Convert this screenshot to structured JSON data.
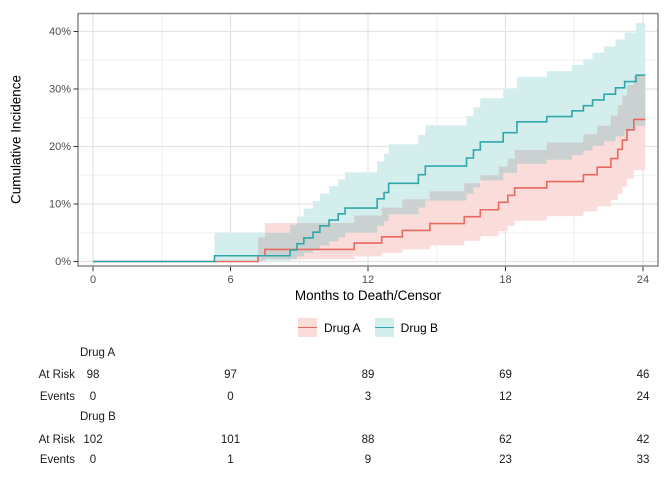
{
  "chart_data": {
    "type": "line",
    "subtype": "step-cumulative-incidence-with-confidence-bands",
    "title": "",
    "xlabel": "Months to Death/Censor",
    "ylabel": "Cumulative Incidence",
    "xlim": [
      0,
      24
    ],
    "ylim_pct": [
      0,
      42
    ],
    "x_ticks": [
      0,
      6,
      12,
      18,
      24
    ],
    "x_tick_labels": [
      "0",
      "6",
      "12",
      "18",
      "24"
    ],
    "x_minor_ticks": [
      3,
      9,
      15,
      21
    ],
    "y_ticks_pct": [
      0,
      10,
      20,
      30,
      40
    ],
    "y_tick_labels": [
      "0%",
      "10%",
      "20%",
      "30%",
      "40%"
    ],
    "y_minor_ticks_pct": [
      5,
      15,
      25,
      35
    ],
    "grid": true,
    "legend_position": "bottom",
    "end_time": 24.1,
    "band_overlap_color": "#CBD1D0",
    "colors": {
      "panel_border": "#8A8A8A",
      "major_grid": "#E3E3E3",
      "minor_grid": "#EFEFEF",
      "tick_mark": "#333333",
      "tick_label": "#4D4D4D"
    },
    "series": [
      {
        "name": "Drug A",
        "line_color": "#E8695F",
        "band_color": "#FADCDA",
        "steps_t_value_lo_hi_pct": [
          [
            0,
            0,
            null,
            null
          ],
          [
            7.2,
            1.0,
            0.1,
            4.2
          ],
          [
            7.5,
            2.1,
            0.4,
            6.7
          ],
          [
            11.4,
            3.2,
            0.9,
            8.0
          ],
          [
            12.6,
            4.3,
            1.5,
            9.4
          ],
          [
            13.5,
            5.4,
            2.1,
            10.8
          ],
          [
            14.7,
            6.6,
            2.8,
            12.2
          ],
          [
            16.2,
            7.8,
            3.6,
            13.6
          ],
          [
            16.9,
            9.0,
            4.4,
            15.0
          ],
          [
            17.7,
            10.3,
            5.3,
            16.5
          ],
          [
            18.1,
            11.5,
            6.2,
            17.9
          ],
          [
            18.4,
            12.8,
            7.1,
            19.4
          ],
          [
            19.8,
            13.9,
            7.9,
            20.7
          ],
          [
            21.4,
            15.1,
            8.7,
            22.1
          ],
          [
            22.0,
            16.4,
            9.6,
            23.6
          ],
          [
            22.6,
            17.9,
            10.7,
            25.4
          ],
          [
            22.9,
            19.5,
            11.8,
            27.2
          ],
          [
            23.1,
            21.1,
            13.0,
            28.9
          ],
          [
            23.3,
            22.9,
            14.4,
            30.7
          ],
          [
            23.6,
            24.7,
            15.9,
            32.4
          ]
        ]
      },
      {
        "name": "Drug B",
        "line_color": "#2FA7A9",
        "band_color": "#D4EEED",
        "steps_t_value_lo_hi_pct": [
          [
            0,
            0,
            null,
            null
          ],
          [
            5.3,
            1.0,
            0.1,
            5.0
          ],
          [
            8.6,
            2.0,
            0.4,
            6.4
          ],
          [
            8.9,
            3.1,
            0.9,
            7.8
          ],
          [
            9.2,
            4.1,
            1.5,
            9.2
          ],
          [
            9.6,
            5.1,
            2.1,
            10.5
          ],
          [
            9.9,
            6.2,
            2.8,
            11.8
          ],
          [
            10.3,
            7.2,
            3.5,
            13.1
          ],
          [
            10.7,
            8.3,
            4.2,
            14.3
          ],
          [
            11.0,
            9.3,
            5.0,
            15.5
          ],
          [
            12.4,
            10.9,
            6.2,
            17.4
          ],
          [
            12.7,
            12.0,
            7.0,
            18.7
          ],
          [
            12.9,
            13.6,
            8.2,
            20.4
          ],
          [
            14.2,
            15.1,
            9.4,
            22.0
          ],
          [
            14.5,
            16.6,
            10.6,
            23.7
          ],
          [
            16.3,
            18.0,
            11.8,
            25.3
          ],
          [
            16.6,
            19.4,
            12.9,
            26.8
          ],
          [
            16.9,
            20.8,
            14.1,
            28.4
          ],
          [
            17.9,
            22.4,
            15.4,
            30.1
          ],
          [
            18.5,
            24.3,
            17.0,
            32.1
          ],
          [
            19.8,
            25.2,
            17.7,
            33.1
          ],
          [
            20.9,
            26.2,
            18.5,
            34.2
          ],
          [
            21.4,
            27.1,
            19.3,
            35.2
          ],
          [
            21.8,
            28.1,
            20.1,
            36.3
          ],
          [
            22.3,
            29.1,
            20.9,
            37.4
          ],
          [
            22.8,
            30.2,
            21.8,
            38.6
          ],
          [
            23.2,
            31.3,
            22.7,
            39.8
          ],
          [
            23.7,
            32.4,
            23.6,
            41.5
          ]
        ]
      }
    ]
  },
  "risk_table": {
    "row_labels": [
      "At Risk",
      "Events"
    ],
    "time_points": [
      0,
      6,
      12,
      18,
      24
    ],
    "groups": [
      {
        "name": "Drug A",
        "at_risk": [
          98,
          97,
          89,
          69,
          46
        ],
        "events": [
          0,
          0,
          3,
          12,
          24
        ]
      },
      {
        "name": "Drug B",
        "at_risk": [
          102,
          101,
          88,
          62,
          42
        ],
        "events": [
          0,
          1,
          9,
          23,
          33
        ]
      }
    ]
  }
}
